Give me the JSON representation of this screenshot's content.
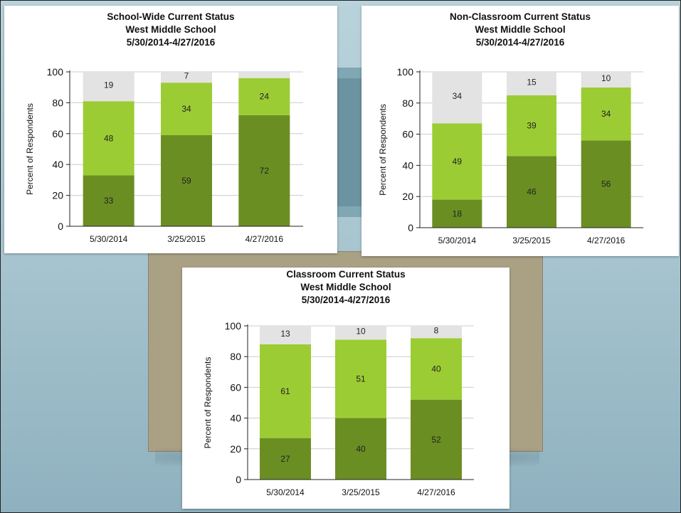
{
  "colors": {
    "dark_green": "#6b8e23",
    "light_green": "#9ccc33",
    "gray": "#e3e3e3",
    "axis": "#222222",
    "grid": "#cccccc"
  },
  "chart_data": [
    {
      "type": "bar",
      "stacked": true,
      "title_lines": [
        "School-Wide Current Status",
        "West Middle School",
        "5/30/2014-4/27/2016"
      ],
      "ylabel": "Percent of Respondents",
      "xlabel": "",
      "ylim": [
        0,
        100
      ],
      "yticks": [
        0,
        20,
        40,
        60,
        80,
        100
      ],
      "grid": true,
      "categories": [
        "5/30/2014",
        "3/25/2015",
        "4/27/2016"
      ],
      "series": [
        {
          "color": "#6b8e23",
          "values": [
            33,
            59,
            72
          ],
          "labels": [
            "33",
            "59",
            "72"
          ]
        },
        {
          "color": "#9ccc33",
          "values": [
            48,
            34,
            24
          ],
          "labels": [
            "48",
            "34",
            "24"
          ]
        },
        {
          "color": "#e3e3e3",
          "values": [
            19,
            7,
            4
          ],
          "labels": [
            "19",
            "7",
            ""
          ]
        }
      ]
    },
    {
      "type": "bar",
      "stacked": true,
      "title_lines": [
        "Non-Classroom Current Status",
        "West Middle School",
        "5/30/2014-4/27/2016"
      ],
      "ylabel": "Percent of Respondents",
      "xlabel": "",
      "ylim": [
        0,
        100
      ],
      "yticks": [
        0,
        20,
        40,
        60,
        80,
        100
      ],
      "grid": true,
      "categories": [
        "5/30/2014",
        "3/25/2015",
        "4/27/2016"
      ],
      "series": [
        {
          "color": "#6b8e23",
          "values": [
            18,
            46,
            56
          ],
          "labels": [
            "18",
            "46",
            "56"
          ]
        },
        {
          "color": "#9ccc33",
          "values": [
            49,
            39,
            34
          ],
          "labels": [
            "49",
            "39",
            "34"
          ]
        },
        {
          "color": "#e3e3e3",
          "values": [
            34,
            15,
            10
          ],
          "labels": [
            "34",
            "15",
            "10"
          ]
        }
      ]
    },
    {
      "type": "bar",
      "stacked": true,
      "title_lines": [
        "Classroom Current Status",
        "West Middle School",
        "5/30/2014-4/27/2016"
      ],
      "ylabel": "Percent of Respondents",
      "xlabel": "",
      "ylim": [
        0,
        100
      ],
      "yticks": [
        0,
        20,
        40,
        60,
        80,
        100
      ],
      "grid": true,
      "categories": [
        "5/30/2014",
        "3/25/2015",
        "4/27/2016"
      ],
      "series": [
        {
          "color": "#6b8e23",
          "values": [
            27,
            40,
            52
          ],
          "labels": [
            "27",
            "40",
            "52"
          ]
        },
        {
          "color": "#9ccc33",
          "values": [
            61,
            51,
            40
          ],
          "labels": [
            "61",
            "51",
            "40"
          ]
        },
        {
          "color": "#e3e3e3",
          "values": [
            13,
            10,
            8
          ],
          "labels": [
            "13",
            "10",
            "8"
          ]
        }
      ]
    }
  ]
}
